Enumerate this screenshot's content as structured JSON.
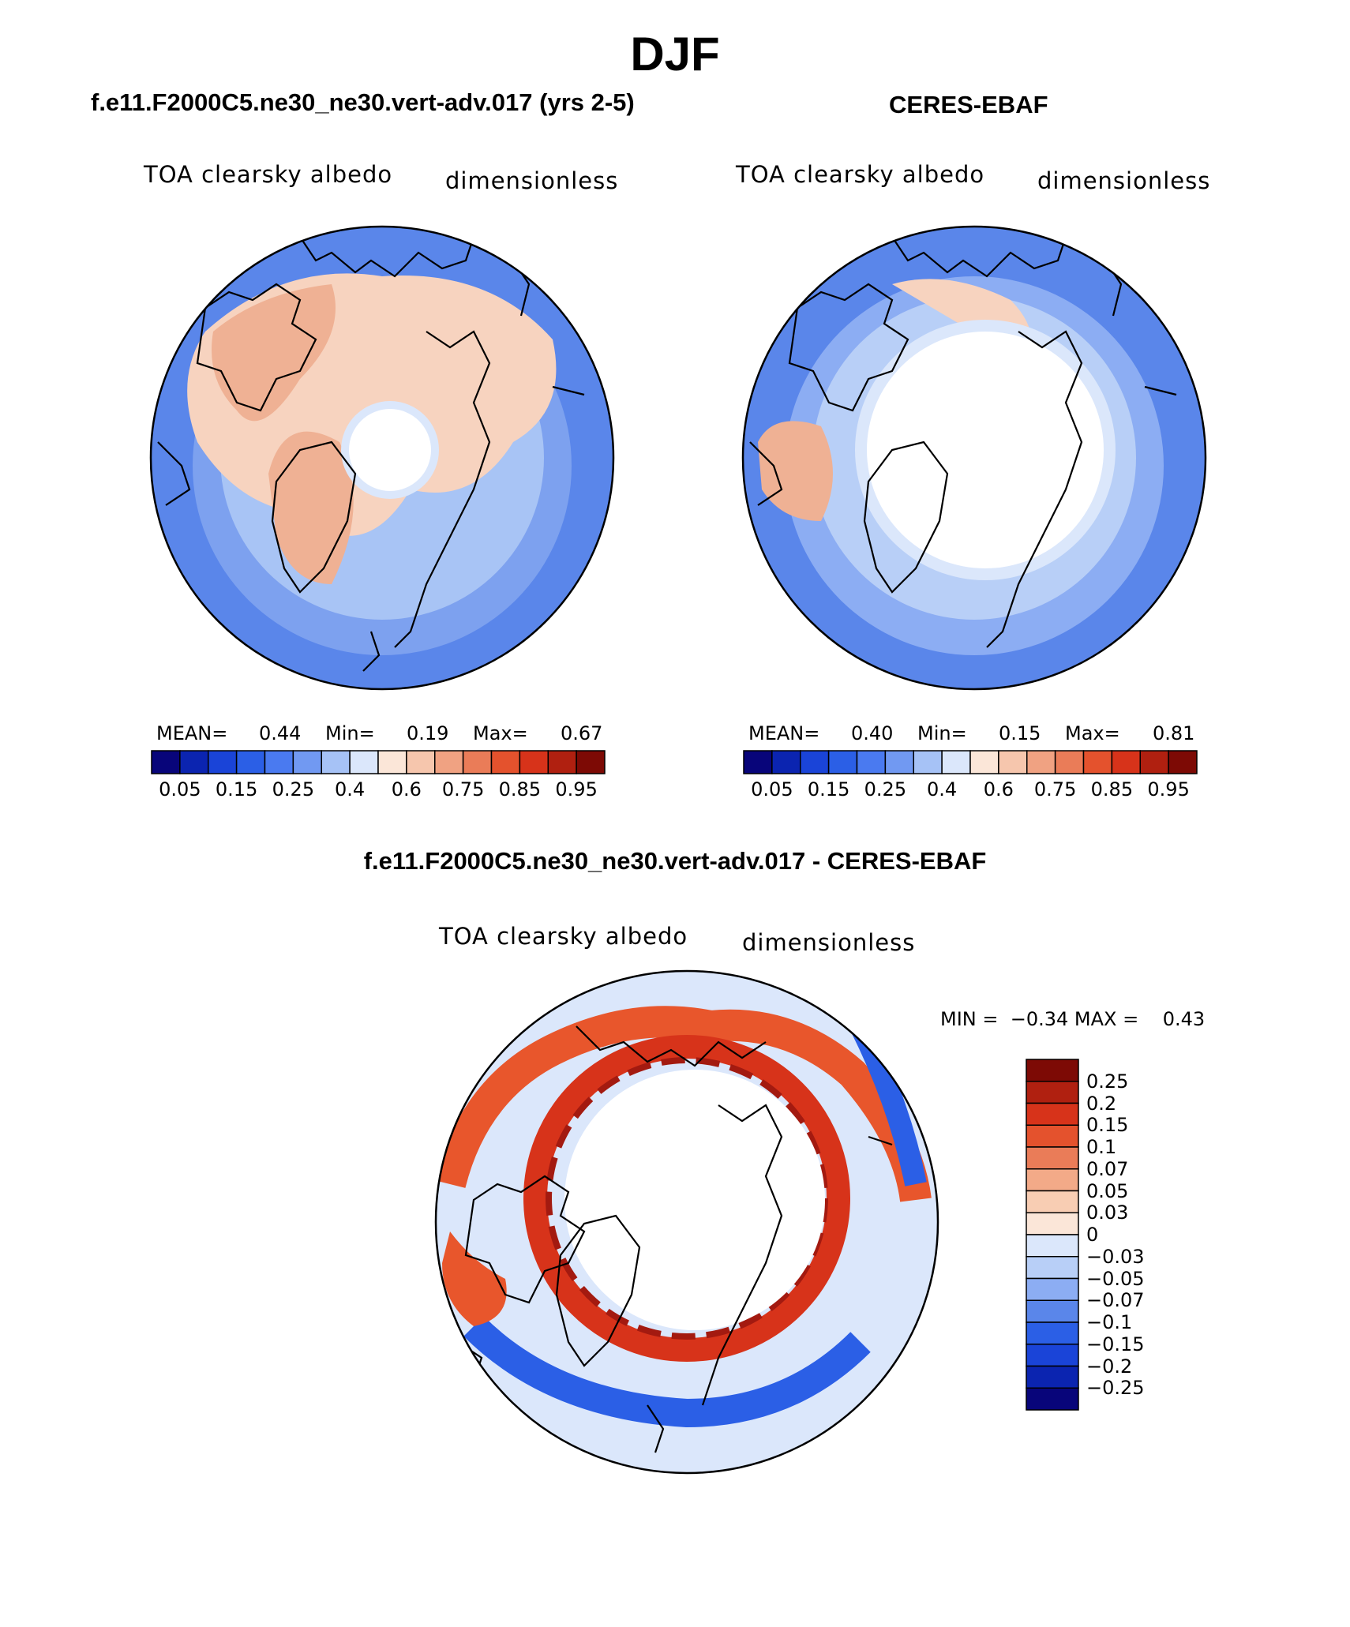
{
  "page_title": "DJF",
  "colors": {
    "ocean_blue": "#5a86ea",
    "deep_blue": "#2b5fe6",
    "light_blue": "#a8c4f5",
    "pale_blue": "#dbe7fb",
    "peach": "#f7d3bf",
    "salmon": "#efb194",
    "orange_red": "#e8562c",
    "dark_red": "#a31a10",
    "coast": "#000000"
  },
  "panels": {
    "model": {
      "case": "f.e11.F2000C5.ne30_ne30.vert-adv.017 (yrs 2-5)",
      "variable": "TOA clearsky albedo",
      "units": "dimensionless",
      "stats": {
        "mean_label": "MEAN=",
        "mean": "0.44",
        "min_label": "Min=",
        "min": "0.19",
        "max_label": "Max=",
        "max": "0.67"
      }
    },
    "obs": {
      "case": "CERES-EBAF",
      "variable": "TOA clearsky albedo",
      "units": "dimensionless",
      "stats": {
        "mean_label": "MEAN=",
        "mean": "0.40",
        "min_label": "Min=",
        "min": "0.15",
        "max_label": "Max=",
        "max": "0.81"
      }
    },
    "diff": {
      "case": "f.e11.F2000C5.ne30_ne30.vert-adv.017 - CERES-EBAF",
      "variable": "TOA clearsky albedo",
      "units": "dimensionless",
      "minmax_text": "MIN =  −0.34 MAX =    0.43"
    }
  },
  "colorbar_abs": {
    "colors": [
      "#08057a",
      "#0b24b0",
      "#1a44d8",
      "#2b5fe6",
      "#4a7af0",
      "#7199f2",
      "#a6c2f6",
      "#dbe7fb",
      "#fbe6d8",
      "#f6c6ad",
      "#f0a282",
      "#ea7c58",
      "#e4522d",
      "#d7331a",
      "#b02010",
      "#7d0a05"
    ],
    "labels": [
      "0.05",
      "0.15",
      "0.25",
      "0.4",
      "0.6",
      "0.75",
      "0.85",
      "0.95"
    ]
  },
  "colorbar_diff": {
    "colors": [
      "#7d0a05",
      "#b02010",
      "#d7331a",
      "#e4522d",
      "#ea7c58",
      "#f3aa88",
      "#f8cdb3",
      "#fbe6d8",
      "#dbe7fb",
      "#b8cff7",
      "#8cadf3",
      "#5a86ea",
      "#2b5fe6",
      "#1a44d8",
      "#0b24b0",
      "#08057a"
    ],
    "labels": [
      "0.25",
      "0.2",
      "0.15",
      "0.1",
      "0.07",
      "0.05",
      "0.03",
      "0",
      "−0.03",
      "−0.05",
      "−0.07",
      "−0.1",
      "−0.15",
      "−0.2",
      "−0.25"
    ]
  }
}
